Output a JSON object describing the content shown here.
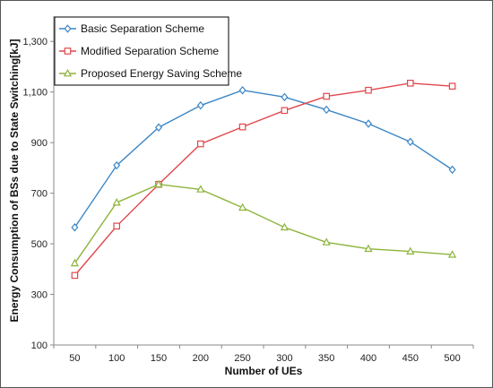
{
  "chart_data": {
    "type": "line",
    "title": "",
    "xlabel": "Number of UEs",
    "ylabel": "Energy Consumption of BSs due to State Switching[kJ]",
    "x": [
      50,
      100,
      150,
      200,
      250,
      300,
      350,
      400,
      450,
      500
    ],
    "x_tick_labels": [
      "50",
      "100",
      "150",
      "200",
      "250",
      "300",
      "350",
      "400",
      "450",
      "500"
    ],
    "ylim": [
      100,
      1400
    ],
    "y_ticks": [
      100,
      300,
      500,
      700,
      900,
      1100,
      1300
    ],
    "y_tick_labels": [
      "100",
      "300",
      "500",
      "700",
      "900",
      "1,100",
      "1,300"
    ],
    "grid": "horizontal major only, no visible gridlines",
    "legend_position": "top-left",
    "series": [
      {
        "name": "Basic Separation Scheme",
        "color": "#3B86C6",
        "marker": "diamond",
        "values": [
          565,
          810,
          960,
          1047,
          1107,
          1080,
          1030,
          975,
          903,
          793
        ]
      },
      {
        "name": "Modified Separation Scheme",
        "color": "#E0474C",
        "marker": "square",
        "values": [
          375,
          570,
          735,
          895,
          962,
          1027,
          1083,
          1107,
          1135,
          1123
        ]
      },
      {
        "name": "Proposed Energy Saving Scheme",
        "color": "#8DB43A",
        "marker": "triangle",
        "values": [
          423,
          663,
          735,
          715,
          643,
          565,
          506,
          480,
          470,
          457
        ]
      }
    ]
  }
}
